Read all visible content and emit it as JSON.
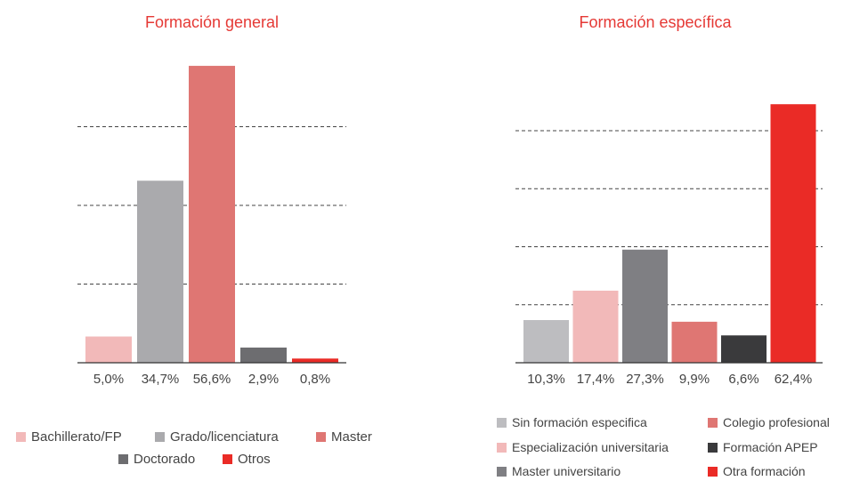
{
  "chart_data": [
    {
      "type": "bar",
      "title": "Formación general",
      "categories": [
        "Bachillerato/FP",
        "Grado/licenciatura",
        "Master",
        "Doctorado",
        "Otros"
      ],
      "values": [
        5.0,
        34.7,
        56.6,
        2.9,
        0.8
      ],
      "value_labels": [
        "5,0%",
        "34,7%",
        "56,6%",
        "2,9%",
        "0,8%"
      ],
      "colors": [
        "#f2b9b9",
        "#aaaaad",
        "#df7673",
        "#6d6d70",
        "#ea2b26"
      ],
      "ylim": [
        0,
        60
      ],
      "grid": true,
      "legend": "bottom"
    },
    {
      "type": "bar",
      "title": "Formación específica",
      "categories": [
        "Sin formación especifica",
        "Especialización universitaria",
        "Master universitario",
        "Colegio profesional",
        "Formación APEP",
        "Otra formación"
      ],
      "values": [
        10.3,
        17.4,
        27.3,
        9.9,
        6.6,
        62.4
      ],
      "value_labels": [
        "10,3%",
        "17,4%",
        "27,3%",
        "9,9%",
        "6,6%",
        "62,4%"
      ],
      "colors": [
        "#bdbdc0",
        "#f2b9b9",
        "#7f7f83",
        "#df7673",
        "#3a3a3c",
        "#ea2b26"
      ],
      "ylim": [
        0,
        70
      ],
      "grid": true,
      "legend": "bottom"
    }
  ]
}
